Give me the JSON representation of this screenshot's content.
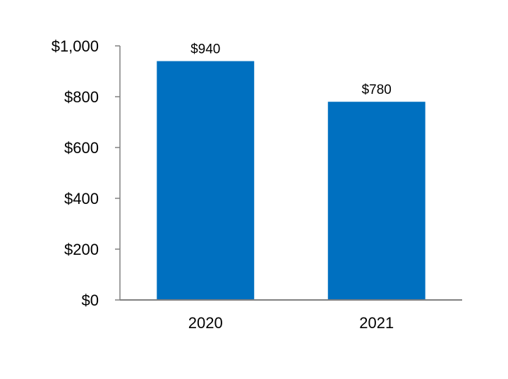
{
  "chart_data": {
    "type": "bar",
    "categories": [
      "2020",
      "2021"
    ],
    "values": [
      940,
      780
    ],
    "value_labels": [
      "$940",
      "$780"
    ],
    "ylim": [
      0,
      1000
    ],
    "yticks": [
      0,
      200,
      400,
      600,
      800,
      1000
    ],
    "ytick_labels": [
      "$0",
      "$200",
      "$400",
      "$600",
      "$800",
      "$1,000"
    ],
    "title": "",
    "xlabel": "",
    "ylabel": "",
    "grid": false,
    "legend": "none",
    "colors": {
      "bar": "#0070C0",
      "axis": "#808080",
      "text": "#000000"
    }
  }
}
